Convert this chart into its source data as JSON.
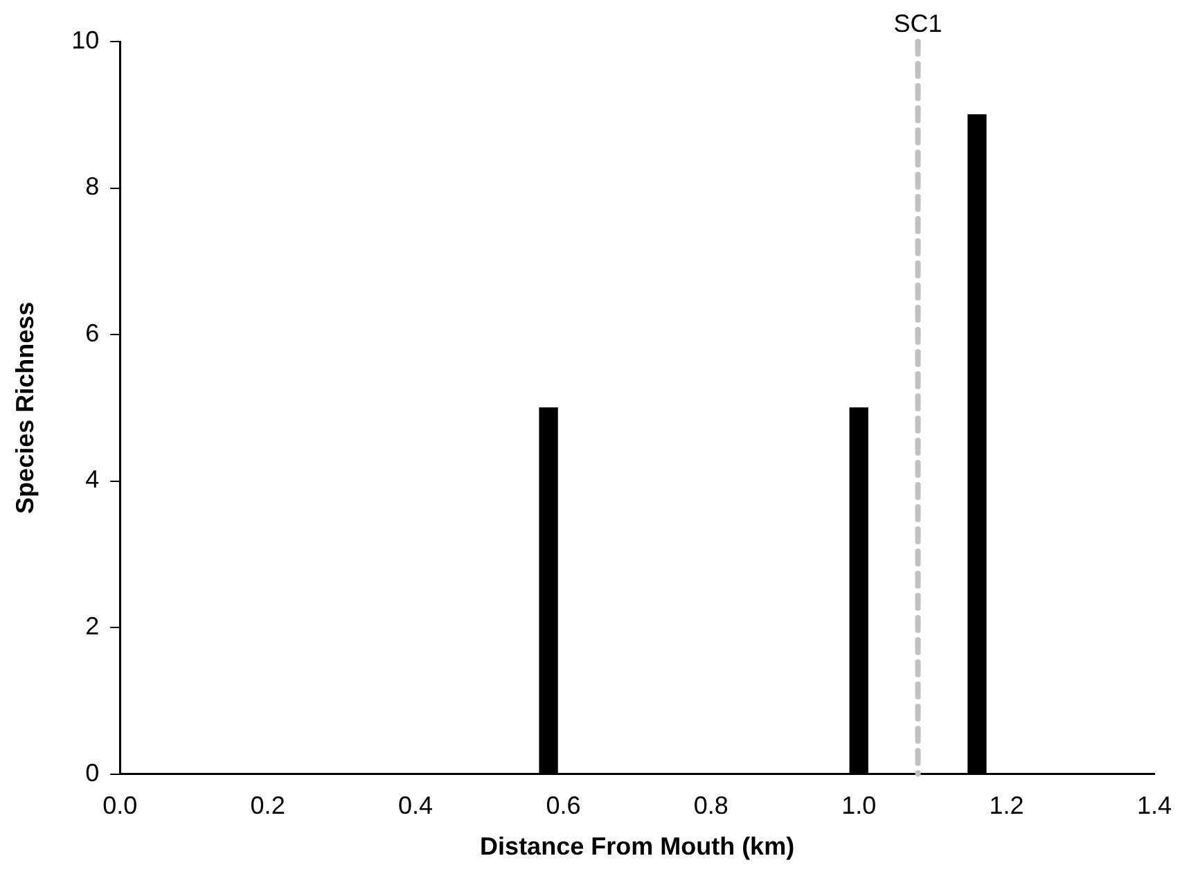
{
  "chart_data": {
    "type": "bar",
    "xlabel": "Distance From Mouth (km)",
    "ylabel": "Species Richness",
    "x": [
      0.58,
      1.0,
      1.16
    ],
    "values": [
      5,
      5,
      9
    ],
    "color": "#000000",
    "xlim": [
      0,
      1.4
    ],
    "xticks": [
      {
        "value": 0,
        "label": "0.0"
      },
      {
        "value": 0.2,
        "label": "0.2"
      },
      {
        "value": 0.4,
        "label": "0.4"
      },
      {
        "value": 0.6,
        "label": "0.6"
      },
      {
        "value": 0.8,
        "label": "0.8"
      },
      {
        "value": 1,
        "label": "1.0"
      },
      {
        "value": 1.2,
        "label": "1.2"
      },
      {
        "value": 1.4,
        "label": "1.4"
      }
    ],
    "ylim": [
      0,
      10
    ],
    "yticks": [
      0,
      2,
      4,
      6,
      8,
      10
    ],
    "grid": false,
    "legend": false,
    "ref_lines": [
      {
        "axis": "x",
        "value": 1.08,
        "label": "SC1",
        "color": "#c0c0c0",
        "line_style": "dashed"
      }
    ]
  }
}
